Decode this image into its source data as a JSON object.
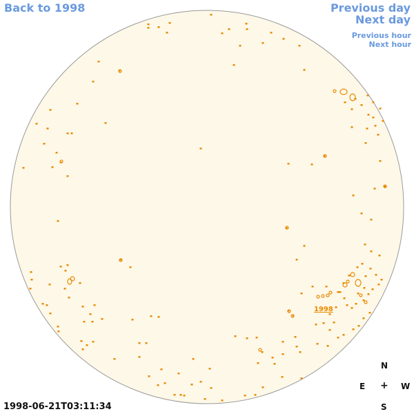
{
  "nav": {
    "back": "Back to 1998",
    "prev_day": "Previous day",
    "next_day": "Next day",
    "prev_hour": "Previous hour",
    "next_hour": "Next hour"
  },
  "disk": {
    "fill_color": "#fef8e8",
    "contour_color": "#e88a00",
    "region_label": "1998"
  },
  "compass": {
    "north": "N",
    "east": "E",
    "center": "+",
    "west": "W",
    "south": "S"
  },
  "timestamp": "1998-06-21T03:11:34"
}
